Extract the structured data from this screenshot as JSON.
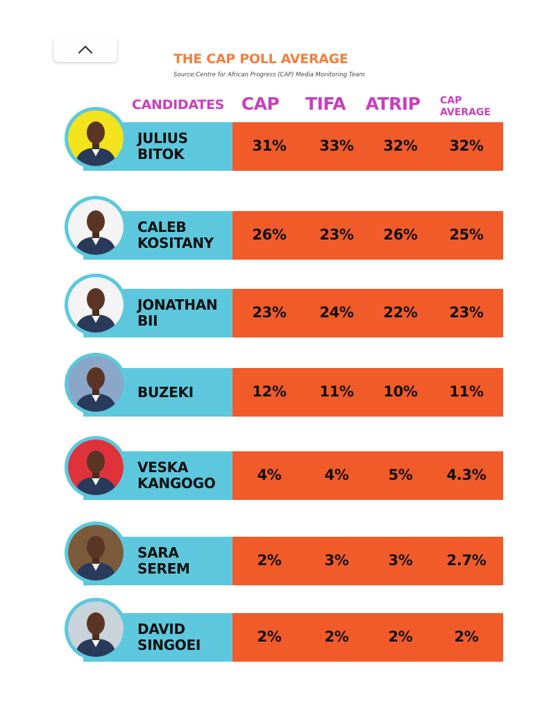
{
  "ui": {
    "collapse_icon": "chevron-up-icon"
  },
  "header": {
    "title": "THE CAP POLL AVERAGE",
    "source": "Source:Centre for African Progress (CAP) Media Monitoring Team"
  },
  "columns": {
    "candidates": "CANDIDATES",
    "cap": "CAP",
    "tifa": "TIFA",
    "atrip": "ATRIP",
    "avg_line1": "CAP",
    "avg_line2": "AVERAGE"
  },
  "colors": {
    "title": "#f47e3c",
    "header_text": "#c93fbe",
    "name_band": "#5dc8dd",
    "value_band": "#f15b29"
  },
  "chart_data": {
    "type": "table",
    "title": "THE CAP POLL AVERAGE",
    "subtitle": "Source:Centre for African Progress (CAP) Media Monitoring Team",
    "columns": [
      "CANDIDATES",
      "CAP",
      "TIFA",
      "ATRIP",
      "CAP AVERAGE"
    ],
    "rows": [
      {
        "name_line1": "JULIUS",
        "name_line2": "BITOK",
        "cap": "31%",
        "tifa": "33%",
        "atrip": "32%",
        "avg": "32%",
        "photo_bg": "#f2e31c"
      },
      {
        "name_line1": "CALEB",
        "name_line2": "KOSITANY",
        "cap": "26%",
        "tifa": "23%",
        "atrip": "26%",
        "avg": "25%",
        "photo_bg": "#f4f4f4"
      },
      {
        "name_line1": "JONATHAN",
        "name_line2": "BII",
        "cap": "23%",
        "tifa": "24%",
        "atrip": "22%",
        "avg": "23%",
        "photo_bg": "#f4f4f4"
      },
      {
        "name_line1": "BUZEKI",
        "name_line2": "",
        "cap": "12%",
        "tifa": "11%",
        "atrip": "10%",
        "avg": "11%",
        "photo_bg": "#8aa6c8"
      },
      {
        "name_line1": "VESKA",
        "name_line2": "KANGOGO",
        "cap": "4%",
        "tifa": "4%",
        "atrip": "5%",
        "avg": "4.3%",
        "photo_bg": "#e0323a"
      },
      {
        "name_line1": "SARA",
        "name_line2": "SEREM",
        "cap": "2%",
        "tifa": "3%",
        "atrip": "3%",
        "avg": "2.7%",
        "photo_bg": "#7a5a3a"
      },
      {
        "name_line1": "DAVID",
        "name_line2": "SINGOEI",
        "cap": "2%",
        "tifa": "2%",
        "atrip": "2%",
        "avg": "2%",
        "photo_bg": "#c9d3da"
      }
    ]
  }
}
